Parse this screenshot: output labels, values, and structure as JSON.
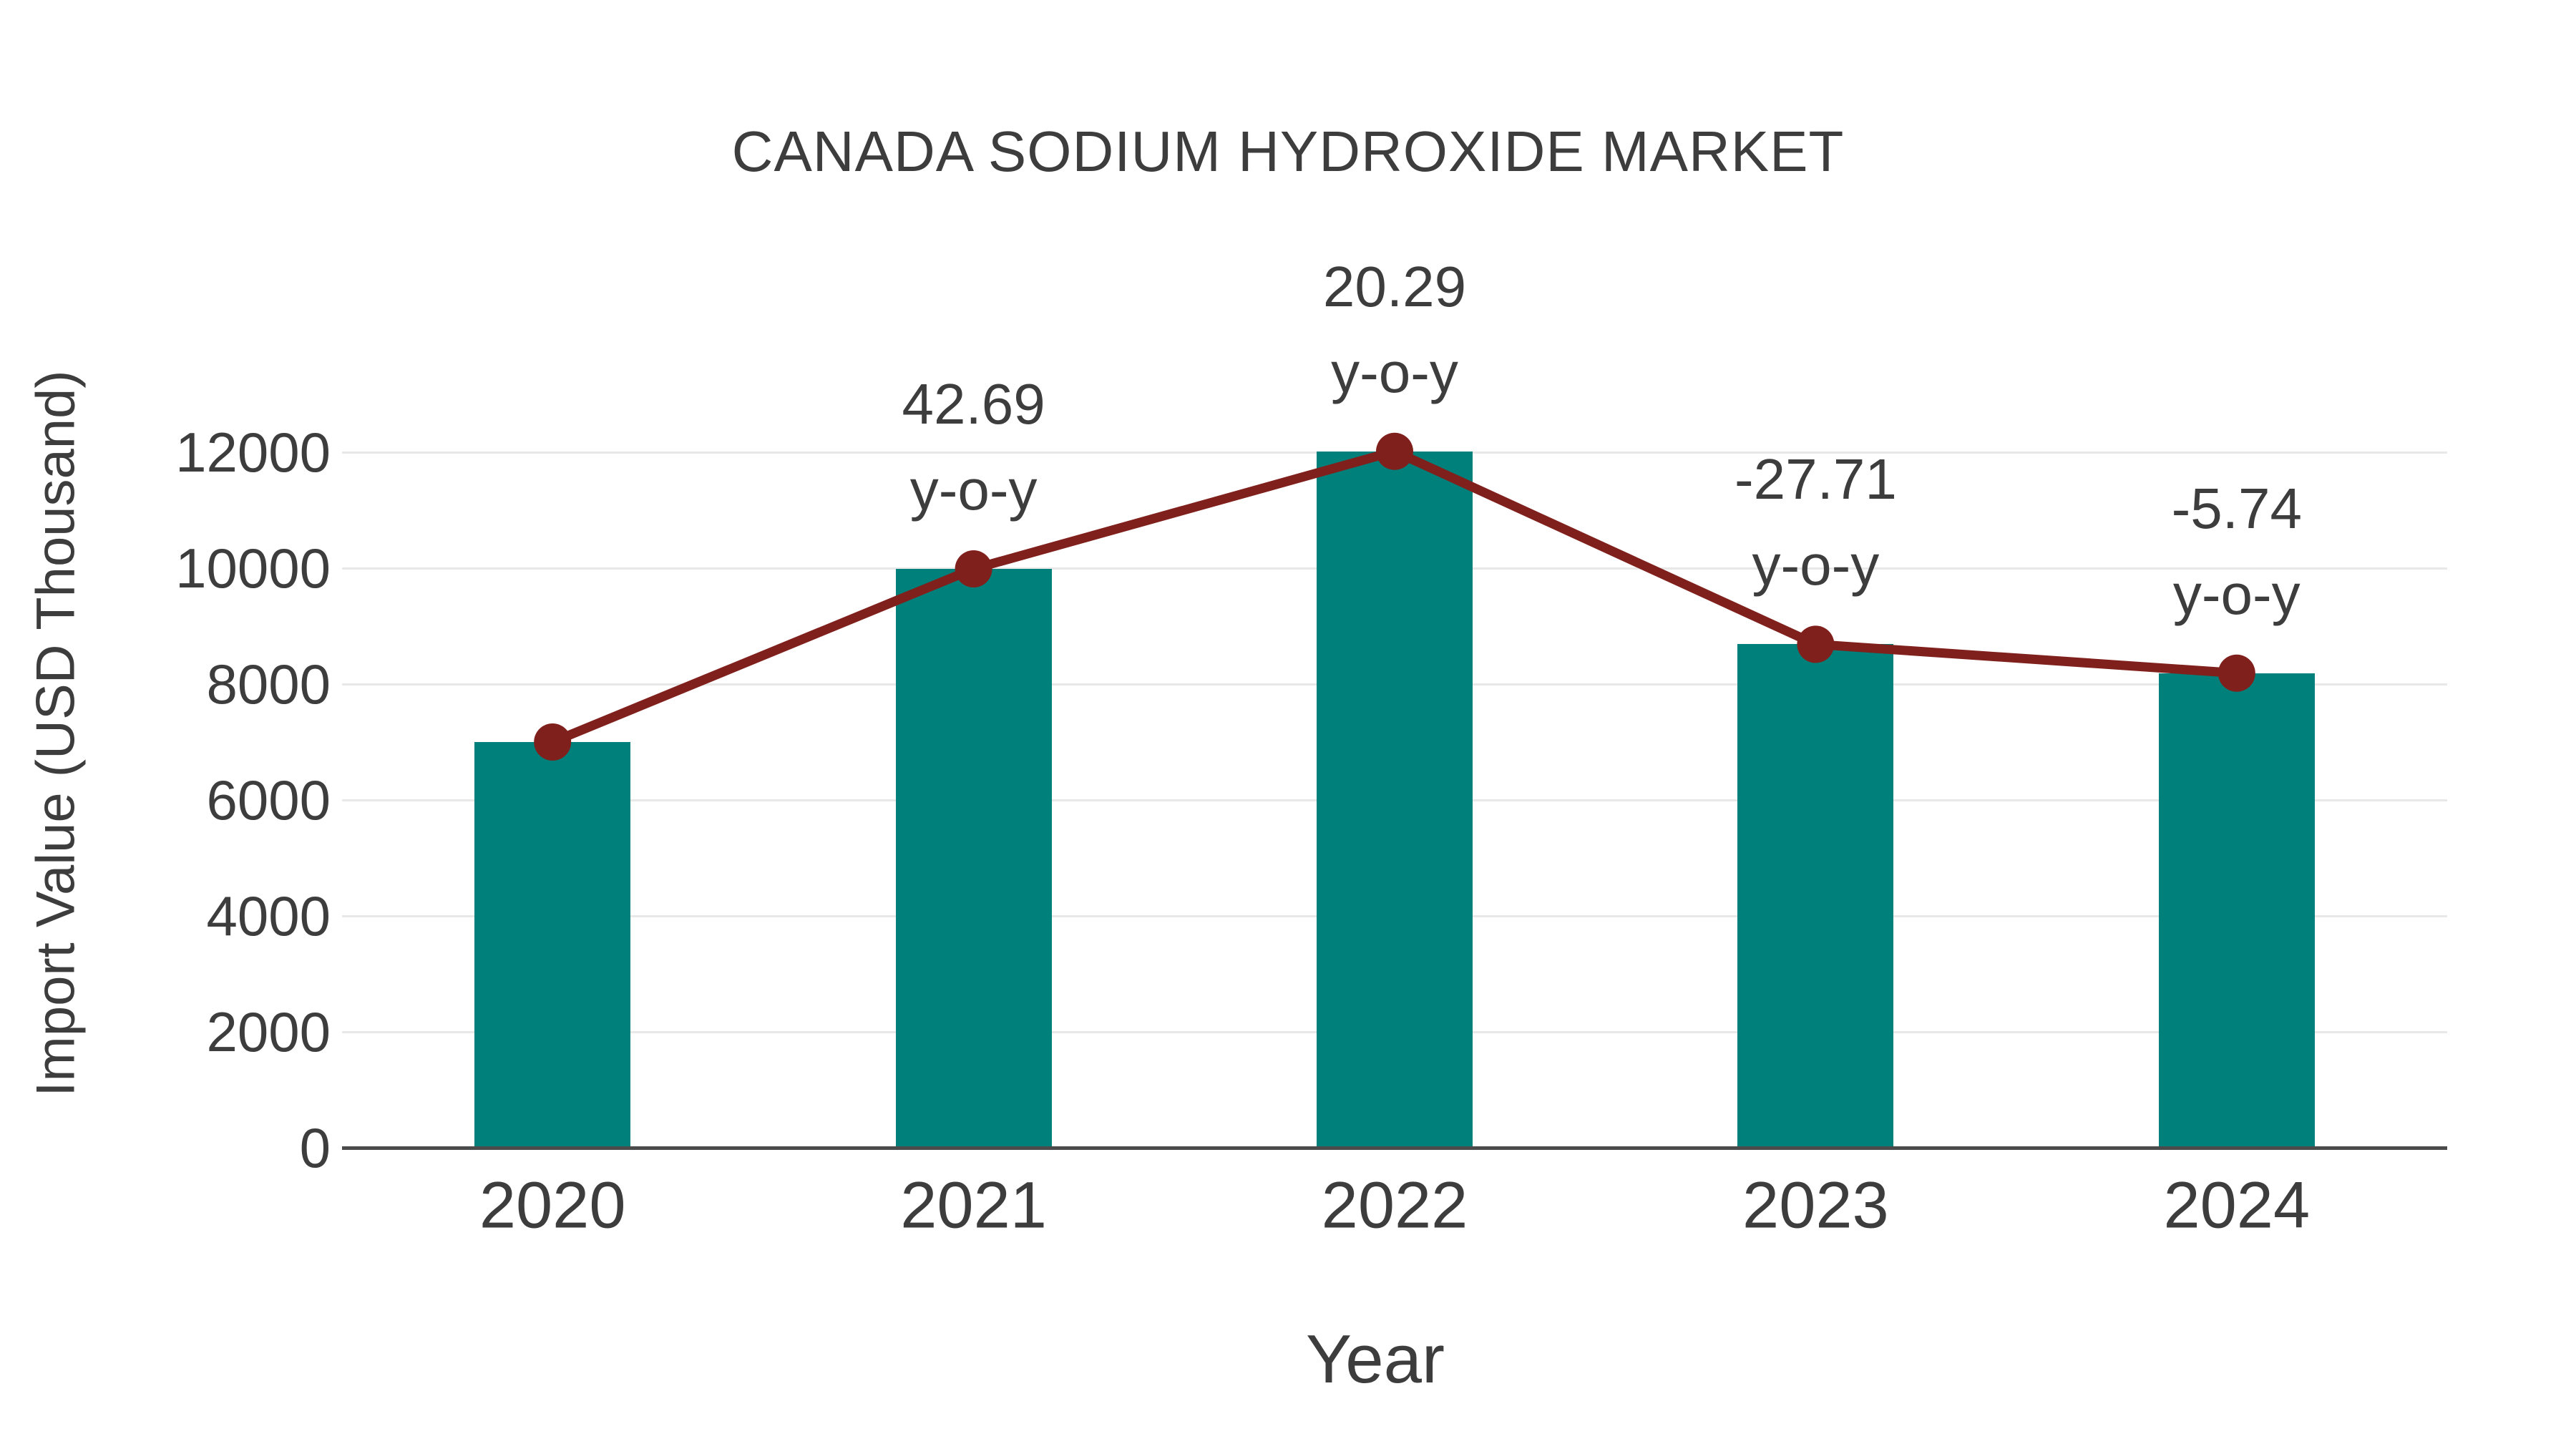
{
  "page_background": "#ffffff",
  "chart_data": {
    "type": "bar",
    "title": "CANADA SODIUM HYDROXIDE MARKET",
    "xlabel": "Year",
    "ylabel": "Import Value (USD Thousand)",
    "categories": [
      "2020",
      "2021",
      "2022",
      "2023",
      "2024"
    ],
    "series": [
      {
        "name": "Import Value (USD Thousand)",
        "type": "bar",
        "values": [
          7000,
          9988,
          12015,
          8686,
          8188
        ]
      },
      {
        "name": "y-o-y change (%)",
        "type": "line",
        "values": [
          null,
          42.69,
          20.29,
          -27.71,
          -5.74
        ],
        "plots_at_bar_values": true
      }
    ],
    "annotations": [
      {
        "category": "2021",
        "line1": "42.69",
        "line2": "y-o-y"
      },
      {
        "category": "2022",
        "line1": "20.29",
        "line2": "y-o-y"
      },
      {
        "category": "2023",
        "line1": "-27.71",
        "line2": "y-o-y"
      },
      {
        "category": "2024",
        "line1": "-5.74",
        "line2": "y-o-y"
      }
    ],
    "ylim": [
      0,
      12000
    ],
    "y_ticks": [
      0,
      2000,
      4000,
      6000,
      8000,
      10000,
      12000
    ],
    "grid": true,
    "legend": false,
    "colors": {
      "bar": "#00807a",
      "line": "#80201c",
      "marker": "#80201c",
      "grid": "#e8e8e8",
      "axis": "#4b4b4b",
      "text": "#3d3d3d"
    }
  }
}
